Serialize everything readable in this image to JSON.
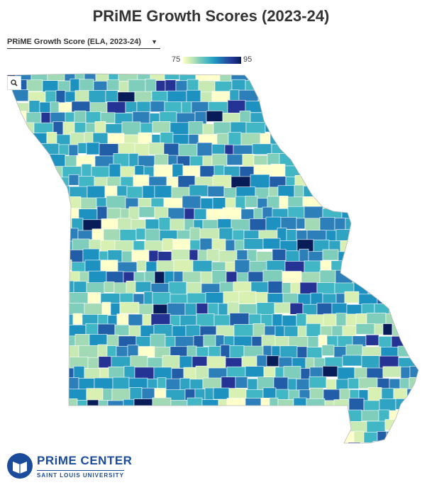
{
  "header": {
    "title": "PRiME Growth Scores (2023-24)"
  },
  "controls": {
    "dropdown": "PRiME Growth Score (ELA, 2023-24)"
  },
  "legend": {
    "min": 75,
    "max": 95
  },
  "footer": {
    "logo_title": "PRiME CENTER",
    "logo_subtitle": "SAINT LOUIS UNIVERSITY"
  }
}
